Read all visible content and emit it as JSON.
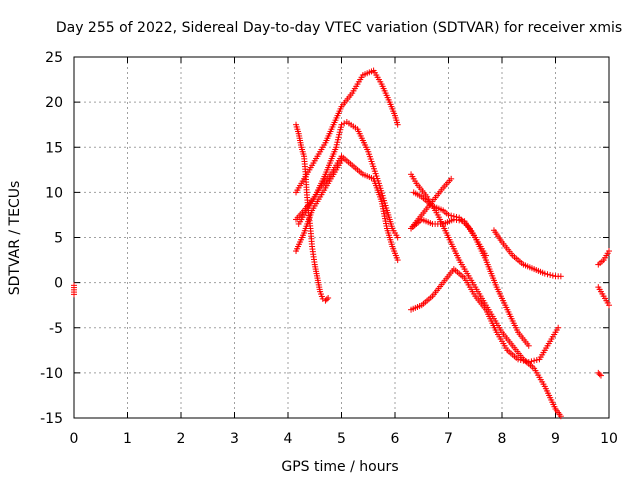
{
  "chart_data": {
    "type": "scatter",
    "title": "Day 255 of 2022, Sidereal Day-to-day VTEC variation (SDTVAR) for receiver xmis",
    "xlabel": "GPS time / hours",
    "ylabel": "SDTVAR / TECUs",
    "xlim": [
      0,
      10
    ],
    "ylim": [
      -15,
      25
    ],
    "xticks": [
      "0",
      "1",
      "2",
      "3",
      "4",
      "5",
      "6",
      "7",
      "8",
      "9",
      "10"
    ],
    "yticks": [
      "-15",
      "-10",
      "-5",
      "0",
      "5",
      "10",
      "15",
      "20",
      "25"
    ],
    "grid": true,
    "marker": "+",
    "color": "#ff0000",
    "series": [
      {
        "points": [
          [
            0.0,
            -0.3
          ],
          [
            0.0,
            -1.3
          ]
        ]
      },
      {
        "points": [
          [
            4.15,
            17.5
          ],
          [
            4.2,
            16.5
          ],
          [
            4.25,
            15.0
          ],
          [
            4.3,
            14.0
          ],
          [
            4.33,
            12.0
          ],
          [
            4.35,
            10.0
          ],
          [
            4.38,
            8.0
          ],
          [
            4.42,
            6.0
          ],
          [
            4.45,
            4.0
          ],
          [
            4.5,
            2.0
          ],
          [
            4.55,
            0.5
          ],
          [
            4.6,
            -1.0
          ],
          [
            4.65,
            -1.8
          ],
          [
            4.7,
            -2.0
          ],
          [
            4.75,
            -1.7
          ]
        ]
      },
      {
        "points": [
          [
            4.15,
            10.0
          ],
          [
            4.3,
            11.5
          ],
          [
            4.5,
            13.5
          ],
          [
            4.7,
            15.5
          ],
          [
            4.85,
            17.5
          ],
          [
            5.0,
            19.5
          ],
          [
            5.2,
            21.0
          ],
          [
            5.4,
            23.0
          ],
          [
            5.6,
            23.5
          ],
          [
            5.75,
            22.0
          ],
          [
            5.9,
            20.0
          ],
          [
            6.0,
            18.5
          ],
          [
            6.05,
            17.5
          ]
        ]
      },
      {
        "points": [
          [
            4.15,
            7.0
          ],
          [
            4.3,
            8.0
          ],
          [
            4.5,
            9.5
          ],
          [
            4.7,
            12.0
          ],
          [
            4.9,
            15.0
          ],
          [
            5.0,
            17.5
          ],
          [
            5.1,
            17.8
          ],
          [
            5.3,
            17.0
          ],
          [
            5.5,
            14.5
          ],
          [
            5.7,
            11.0
          ],
          [
            5.85,
            8.0
          ],
          [
            5.95,
            6.0
          ],
          [
            6.05,
            5.0
          ]
        ]
      },
      {
        "points": [
          [
            4.2,
            6.5
          ],
          [
            4.4,
            8.5
          ],
          [
            4.6,
            10.5
          ],
          [
            4.8,
            12.0
          ],
          [
            5.0,
            14.0
          ],
          [
            5.2,
            13.0
          ],
          [
            5.4,
            12.0
          ],
          [
            5.6,
            11.5
          ],
          [
            5.75,
            9.0
          ],
          [
            5.85,
            6.0
          ],
          [
            5.95,
            4.0
          ],
          [
            6.05,
            2.5
          ]
        ]
      },
      {
        "points": [
          [
            4.15,
            3.5
          ],
          [
            4.3,
            5.5
          ],
          [
            4.45,
            8.0
          ],
          [
            4.6,
            9.5
          ],
          [
            4.8,
            11.5
          ],
          [
            5.0,
            13.5
          ]
        ]
      },
      {
        "points": [
          [
            6.3,
            12.0
          ],
          [
            6.4,
            11.0
          ],
          [
            6.6,
            9.5
          ],
          [
            6.8,
            7.5
          ],
          [
            7.0,
            5.0
          ],
          [
            7.2,
            2.5
          ],
          [
            7.4,
            0.5
          ],
          [
            7.6,
            -1.5
          ],
          [
            7.8,
            -3.5
          ],
          [
            8.0,
            -5.5
          ],
          [
            8.2,
            -7.0
          ],
          [
            8.4,
            -8.5
          ],
          [
            8.6,
            -9.5
          ],
          [
            8.8,
            -11.5
          ],
          [
            9.0,
            -14.0
          ],
          [
            9.1,
            -14.8
          ]
        ]
      },
      {
        "points": [
          [
            6.3,
            -3.0
          ],
          [
            6.5,
            -2.5
          ],
          [
            6.7,
            -1.5
          ],
          [
            6.9,
            0.0
          ],
          [
            7.1,
            1.5
          ],
          [
            7.3,
            0.5
          ],
          [
            7.5,
            -1.5
          ],
          [
            7.7,
            -3.0
          ],
          [
            7.9,
            -5.5
          ],
          [
            8.1,
            -7.5
          ],
          [
            8.3,
            -8.5
          ],
          [
            8.5,
            -8.8
          ],
          [
            8.7,
            -8.5
          ],
          [
            8.9,
            -6.5
          ],
          [
            9.05,
            -5.0
          ]
        ]
      },
      {
        "points": [
          [
            6.3,
            6.0
          ],
          [
            6.5,
            7.0
          ],
          [
            6.7,
            6.5
          ],
          [
            6.9,
            6.5
          ],
          [
            7.1,
            7.0
          ],
          [
            7.3,
            6.8
          ],
          [
            7.5,
            5.0
          ],
          [
            7.7,
            2.5
          ],
          [
            7.9,
            -0.5
          ],
          [
            8.1,
            -3.0
          ],
          [
            8.3,
            -5.5
          ],
          [
            8.5,
            -7.0
          ]
        ]
      },
      {
        "points": [
          [
            6.35,
            10.0
          ],
          [
            6.5,
            9.5
          ],
          [
            6.7,
            8.5
          ],
          [
            6.9,
            8.0
          ],
          [
            7.0,
            7.5
          ],
          [
            7.2,
            7.2
          ],
          [
            7.4,
            6.0
          ],
          [
            7.6,
            4.0
          ],
          [
            7.7,
            3.0
          ]
        ]
      },
      {
        "points": [
          [
            6.3,
            6.0
          ],
          [
            6.5,
            7.5
          ],
          [
            6.7,
            9.0
          ],
          [
            6.9,
            10.5
          ],
          [
            7.05,
            11.5
          ]
        ]
      },
      {
        "points": [
          [
            7.85,
            5.8
          ],
          [
            8.0,
            4.5
          ],
          [
            8.2,
            3.0
          ],
          [
            8.4,
            2.0
          ],
          [
            8.6,
            1.5
          ],
          [
            8.8,
            1.0
          ],
          [
            9.0,
            0.7
          ],
          [
            9.1,
            0.7
          ]
        ]
      },
      {
        "points": [
          [
            9.8,
            -10.0
          ],
          [
            9.85,
            -10.3
          ]
        ]
      },
      {
        "points": [
          [
            9.8,
            2.0
          ],
          [
            9.9,
            2.5
          ],
          [
            10.0,
            3.5
          ]
        ]
      },
      {
        "points": [
          [
            9.8,
            -0.5
          ],
          [
            9.9,
            -1.5
          ],
          [
            10.0,
            -2.5
          ]
        ]
      }
    ]
  }
}
